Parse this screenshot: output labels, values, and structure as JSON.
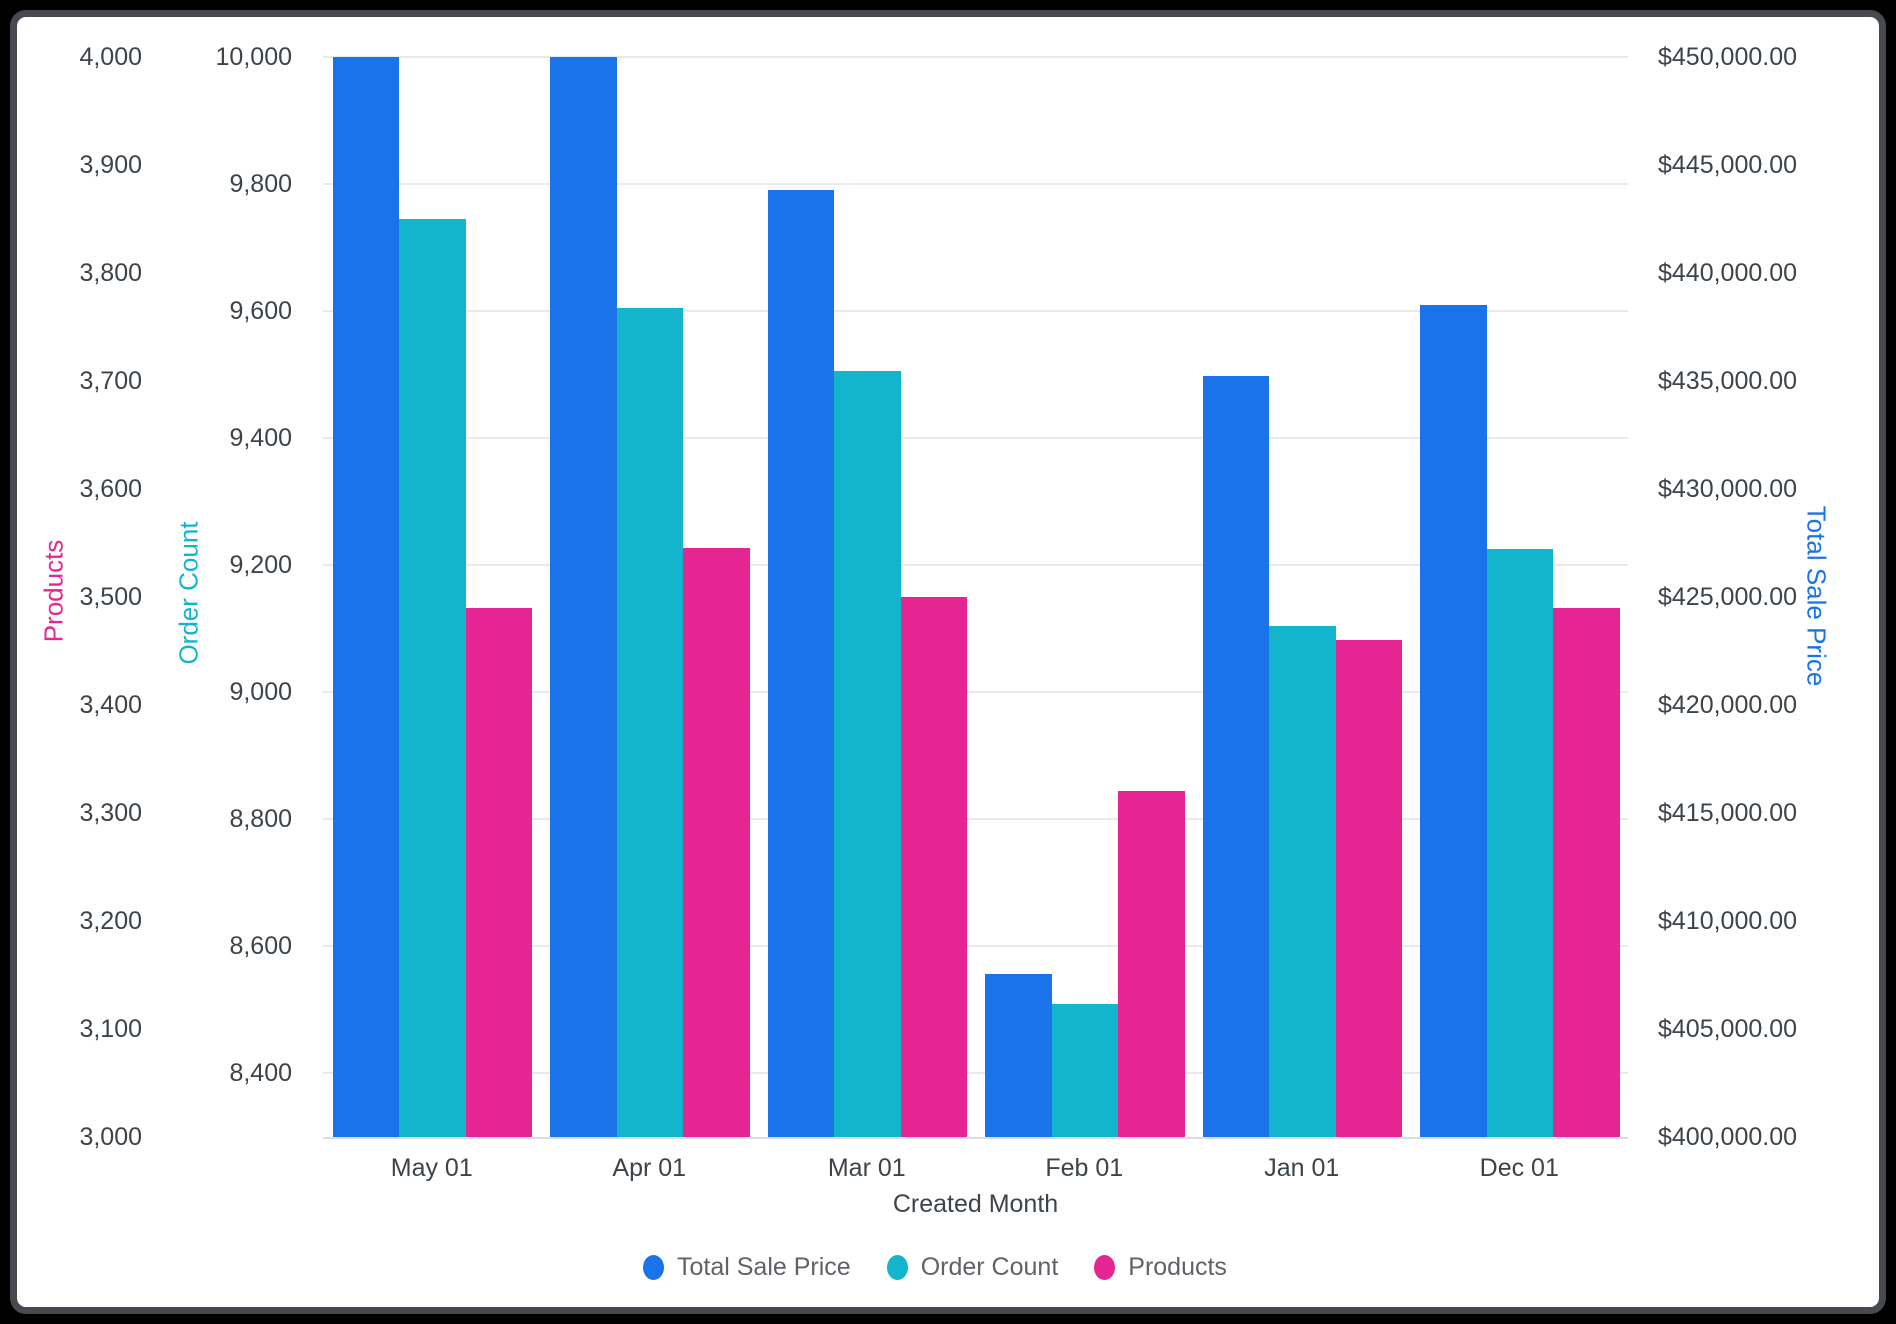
{
  "chart_data": {
    "type": "bar",
    "title": "",
    "categories": [
      "May 01",
      "Apr 01",
      "Mar 01",
      "Feb 01",
      "Jan 01",
      "Dec 01"
    ],
    "series": [
      {
        "name": "Total Sale Price",
        "axis": "total_sale_price",
        "color": "#1A73E8",
        "values": [
          450000,
          450000,
          443850,
          407550,
          435250,
          438500
        ]
      },
      {
        "name": "Order Count",
        "axis": "order_count",
        "color": "#12B5CB",
        "values": [
          9745,
          9605,
          9505,
          8510,
          9105,
          9225
        ]
      },
      {
        "name": "Products",
        "axis": "products",
        "color": "#E52592",
        "values": [
          3490,
          3545,
          3500,
          3320,
          3460,
          3490
        ]
      }
    ],
    "xlabel": "Created Month",
    "axes": {
      "products": {
        "title": "Products",
        "color": "#E52592",
        "side": "left-outer",
        "min": 3000,
        "max": 4000,
        "ticks": [
          4000,
          3900,
          3800,
          3700,
          3600,
          3500,
          3400,
          3300,
          3200,
          3100,
          3000
        ],
        "tick_labels": [
          "4,000",
          "3,900",
          "3,800",
          "3,700",
          "3,600",
          "3,500",
          "3,400",
          "3,300",
          "3,200",
          "3,100",
          "3,000"
        ]
      },
      "order_count": {
        "title": "Order Count",
        "color": "#12B5CB",
        "side": "left-inner",
        "min": 8300,
        "max": 10000,
        "ticks": [
          10000,
          9800,
          9600,
          9400,
          9200,
          9000,
          8800,
          8600,
          8400
        ],
        "tick_labels": [
          "10,000",
          "9,800",
          "9,600",
          "9,400",
          "9,200",
          "9,000",
          "8,800",
          "8,600",
          "8,400"
        ]
      },
      "total_sale_price": {
        "title": "Total Sale Price",
        "color": "#1A73E8",
        "side": "right",
        "min": 400000,
        "max": 450000,
        "ticks": [
          450000,
          445000,
          440000,
          435000,
          430000,
          425000,
          420000,
          415000,
          410000,
          405000,
          400000
        ],
        "tick_labels": [
          "$450,000.00",
          "$445,000.00",
          "$440,000.00",
          "$435,000.00",
          "$430,000.00",
          "$425,000.00",
          "$420,000.00",
          "$415,000.00",
          "$410,000.00",
          "$405,000.00",
          "$400,000.00"
        ]
      }
    },
    "grid": "horizontal-on-order-count-ticks",
    "legend": {
      "position": "bottom",
      "items": [
        "Total Sale Price",
        "Order Count",
        "Products"
      ]
    },
    "colors": {
      "grid_line": "#e8eaed",
      "axis_line": "#d9dbe6",
      "tick_text": "#3d4449",
      "legend_text": "#5f6368",
      "frame": "#46494d",
      "background": "#ffffff"
    }
  }
}
